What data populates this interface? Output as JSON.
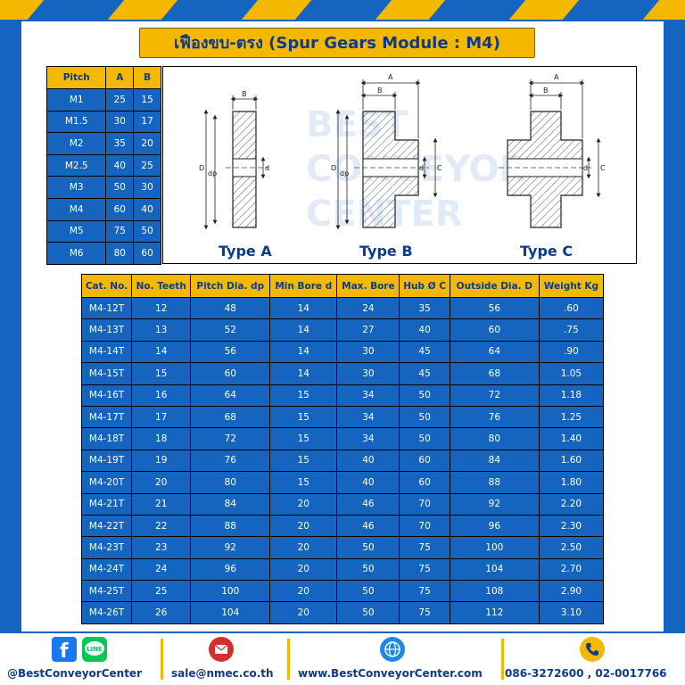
{
  "title": "เฟืองขบ-ตรง (Spur Gears Module : M4)",
  "pitch_table": {
    "headers": [
      "Pitch",
      "A",
      "B"
    ],
    "rows": [
      [
        "M1",
        "25",
        "15"
      ],
      [
        "M1.5",
        "30",
        "17"
      ],
      [
        "M2",
        "35",
        "20"
      ],
      [
        "M2.5",
        "40",
        "25"
      ],
      [
        "M3",
        "50",
        "30"
      ],
      [
        "M4",
        "60",
        "40"
      ],
      [
        "M5",
        "75",
        "50"
      ],
      [
        "M6",
        "80",
        "60"
      ]
    ]
  },
  "diagram": {
    "type_a": "Type A",
    "type_b": "Type B",
    "type_c": "Type C",
    "dim_a": "A",
    "dim_b": "B",
    "dim_c": "C",
    "dim_d": "D",
    "dim_dp": "dp",
    "dim_d_small": "d",
    "watermark": [
      "BEST",
      "CONVEYOR",
      "CENTER"
    ]
  },
  "main_table": {
    "headers": [
      "Cat. No.",
      "No. Teeth",
      "Pitch Dia. dp",
      "Min Bore d",
      "Max. Bore",
      "Hub Ø C",
      "Outside Dia. D",
      "Weight Kg"
    ],
    "rows": [
      [
        "M4-12T",
        "12",
        "48",
        "14",
        "24",
        "35",
        "56",
        ".60"
      ],
      [
        "M4-13T",
        "13",
        "52",
        "14",
        "27",
        "40",
        "60",
        ".75"
      ],
      [
        "M4-14T",
        "14",
        "56",
        "14",
        "30",
        "45",
        "64",
        ".90"
      ],
      [
        "M4-15T",
        "15",
        "60",
        "14",
        "30",
        "45",
        "68",
        "1.05"
      ],
      [
        "M4-16T",
        "16",
        "64",
        "15",
        "34",
        "50",
        "72",
        "1.18"
      ],
      [
        "M4-17T",
        "17",
        "68",
        "15",
        "34",
        "50",
        "76",
        "1.25"
      ],
      [
        "M4-18T",
        "18",
        "72",
        "15",
        "34",
        "50",
        "80",
        "1.40"
      ],
      [
        "M4-19T",
        "19",
        "76",
        "15",
        "40",
        "60",
        "84",
        "1.60"
      ],
      [
        "M4-20T",
        "20",
        "80",
        "15",
        "40",
        "60",
        "88",
        "1.80"
      ],
      [
        "M4-21T",
        "21",
        "84",
        "20",
        "46",
        "70",
        "92",
        "2.20"
      ],
      [
        "M4-22T",
        "22",
        "88",
        "20",
        "46",
        "70",
        "96",
        "2.30"
      ],
      [
        "M4-23T",
        "23",
        "92",
        "20",
        "50",
        "75",
        "100",
        "2.50"
      ],
      [
        "M4-24T",
        "24",
        "96",
        "20",
        "50",
        "75",
        "104",
        "2.70"
      ],
      [
        "M4-25T",
        "25",
        "100",
        "20",
        "50",
        "75",
        "108",
        "2.90"
      ],
      [
        "M4-26T",
        "26",
        "104",
        "20",
        "50",
        "75",
        "112",
        "3.10"
      ]
    ]
  },
  "footer": {
    "social": "@BestConveyorCenter",
    "line_label": "LINE",
    "email": "sale@nmec.co.th",
    "website": "www.BestConveyorCenter.com",
    "phone": "086-3272600 , 02-0017766"
  },
  "colors": {
    "blue": "#1565c0",
    "yellow": "#f5b800",
    "navy": "#0d3b8c"
  }
}
